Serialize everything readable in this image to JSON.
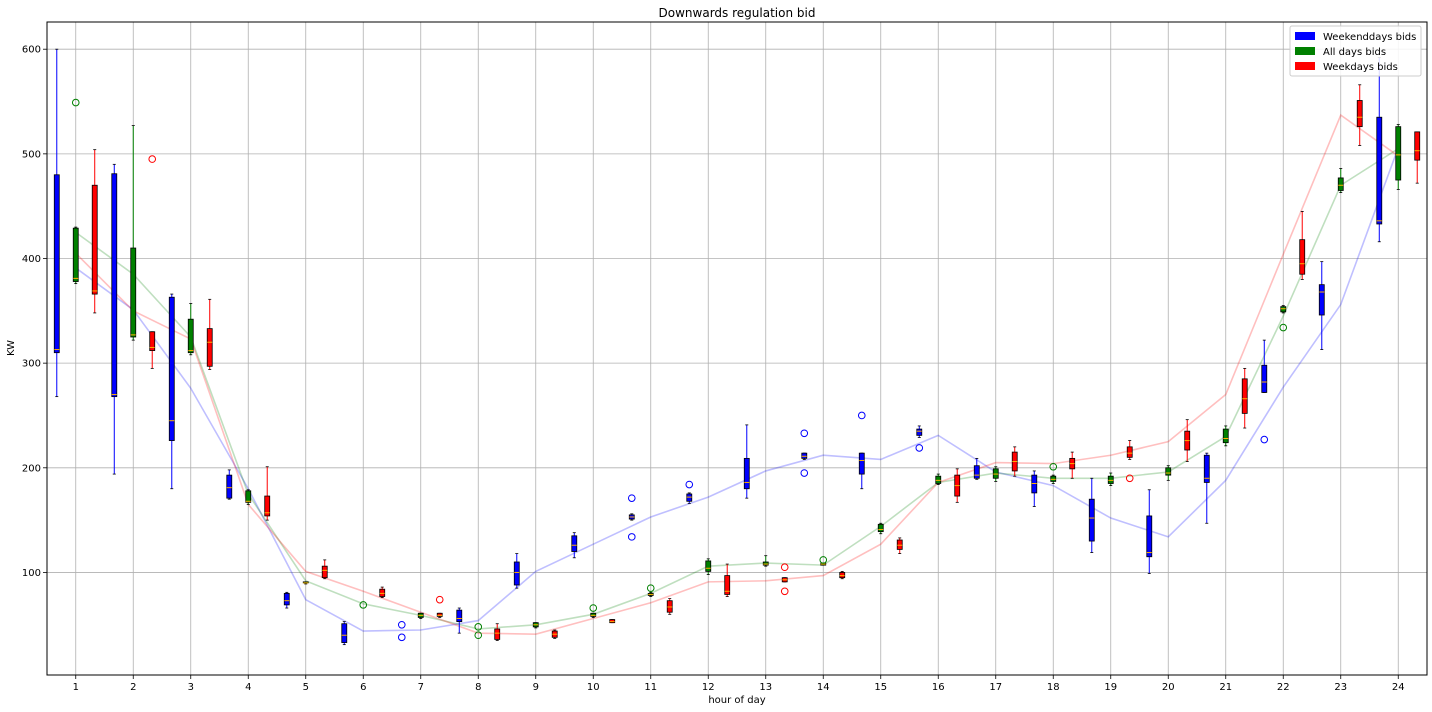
{
  "chart_data": {
    "type": "box",
    "title": "Downwards regulation bid",
    "xlabel": "hour of day",
    "ylabel": "KW",
    "x_ticks": [
      "1",
      "2",
      "3",
      "4",
      "5",
      "6",
      "7",
      "8",
      "9",
      "10",
      "11",
      "12",
      "13",
      "14",
      "15",
      "16",
      "17",
      "18",
      "19",
      "20",
      "21",
      "22",
      "23",
      "24"
    ],
    "y_ticks": [
      100,
      200,
      300,
      400,
      500,
      600
    ],
    "ylim": [
      2,
      626
    ],
    "grid": true,
    "legend_position": "top-right",
    "legend": [
      {
        "label": "Weekenddays bids",
        "color": "#0000ff"
      },
      {
        "label": "All days bids",
        "color": "#008000"
      },
      {
        "label": "Weekdays bids",
        "color": "#ff0000"
      }
    ],
    "series": [
      {
        "name": "Weekenddays bids",
        "color": "#0000ff",
        "offset": -0.33,
        "boxes": [
          {
            "q1": 310,
            "q3": 480,
            "median": 313,
            "wlo": 268,
            "whi": 600,
            "outliers": []
          },
          {
            "q1": 268,
            "q3": 481,
            "median": 270,
            "wlo": 194,
            "whi": 490,
            "outliers": []
          },
          {
            "q1": 226,
            "q3": 363,
            "median": 245,
            "wlo": 180,
            "whi": 366,
            "outliers": []
          },
          {
            "q1": 171,
            "q3": 193,
            "median": 181,
            "wlo": 170,
            "whi": 198,
            "outliers": []
          },
          {
            "q1": 69,
            "q3": 80,
            "median": 73,
            "wlo": 66,
            "whi": 81,
            "outliers": []
          },
          {
            "q1": 33,
            "q3": 51,
            "median": 40,
            "wlo": 31,
            "whi": 53,
            "outliers": []
          },
          {
            "q1": null,
            "q3": null,
            "median": null,
            "wlo": null,
            "whi": null,
            "outliers": [
              38,
              50
            ]
          },
          {
            "q1": 53,
            "q3": 64,
            "median": 56,
            "wlo": 42,
            "whi": 66,
            "outliers": []
          },
          {
            "q1": 88,
            "q3": 110,
            "median": 100,
            "wlo": 85,
            "whi": 118,
            "outliers": []
          },
          {
            "q1": 120,
            "q3": 135,
            "median": 126,
            "wlo": 114,
            "whi": 138,
            "outliers": []
          },
          {
            "q1": 151,
            "q3": 155,
            "median": 153,
            "wlo": 150,
            "whi": 156,
            "outliers": [
              134,
              171
            ]
          },
          {
            "q1": 168,
            "q3": 175,
            "median": 172,
            "wlo": 166,
            "whi": 176,
            "outliers": [
              184
            ]
          },
          {
            "q1": 180,
            "q3": 209,
            "median": 186,
            "wlo": 171,
            "whi": 241,
            "outliers": []
          },
          {
            "q1": 209,
            "q3": 214,
            "median": 211,
            "wlo": 208,
            "whi": 214,
            "outliers": [
              195,
              233
            ]
          },
          {
            "q1": 194,
            "q3": 214,
            "median": 207,
            "wlo": 180,
            "whi": 214,
            "outliers": [
              250
            ]
          },
          {
            "q1": 231,
            "q3": 237,
            "median": 235,
            "wlo": 229,
            "whi": 240,
            "outliers": [
              219
            ]
          },
          {
            "q1": 190,
            "q3": 202,
            "median": 193,
            "wlo": 189,
            "whi": 209,
            "outliers": []
          },
          {
            "q1": 176,
            "q3": 193,
            "median": 185,
            "wlo": 163,
            "whi": 197,
            "outliers": []
          },
          {
            "q1": 130,
            "q3": 170,
            "median": 152,
            "wlo": 119,
            "whi": 190,
            "outliers": []
          },
          {
            "q1": 115,
            "q3": 154,
            "median": 119,
            "wlo": 99,
            "whi": 179,
            "outliers": []
          },
          {
            "q1": 186,
            "q3": 212,
            "median": 190,
            "wlo": 147,
            "whi": 214,
            "outliers": []
          },
          {
            "q1": 272,
            "q3": 298,
            "median": 282,
            "wlo": 272,
            "whi": 322,
            "outliers": [
              227
            ]
          },
          {
            "q1": 346,
            "q3": 375,
            "median": 368,
            "wlo": 313,
            "whi": 397,
            "outliers": []
          },
          {
            "q1": 433,
            "q3": 535,
            "median": 436,
            "wlo": 416,
            "whi": 592,
            "outliers": []
          }
        ],
        "trend": [
          391,
          351,
          276,
          180,
          74,
          44,
          45,
          54,
          101,
          127,
          153,
          172,
          197,
          212,
          208,
          231,
          196,
          183,
          152,
          134,
          188,
          277,
          356,
          506
        ]
      },
      {
        "name": "All days bids",
        "color": "#008000",
        "offset": 0,
        "boxes": [
          {
            "q1": 378,
            "q3": 429,
            "median": 381,
            "wlo": 376,
            "whi": 430,
            "outliers": [
              549
            ]
          },
          {
            "q1": 325,
            "q3": 410,
            "median": 327,
            "wlo": 322,
            "whi": 527,
            "outliers": []
          },
          {
            "q1": 310,
            "q3": 342,
            "median": 312,
            "wlo": 308,
            "whi": 357,
            "outliers": []
          },
          {
            "q1": 167,
            "q3": 178,
            "median": 168,
            "wlo": 165,
            "whi": 179,
            "outliers": []
          },
          {
            "q1": 90,
            "q3": 91,
            "median": 90,
            "wlo": 89,
            "whi": 91,
            "outliers": []
          },
          {
            "q1": null,
            "q3": null,
            "median": null,
            "wlo": null,
            "whi": null,
            "outliers": [
              69
            ]
          },
          {
            "q1": 57,
            "q3": 61,
            "median": 59,
            "wlo": 56,
            "whi": 61,
            "outliers": []
          },
          {
            "q1": null,
            "q3": null,
            "median": null,
            "wlo": null,
            "whi": null,
            "outliers": [
              40,
              48
            ]
          },
          {
            "q1": 48,
            "q3": 52,
            "median": 50,
            "wlo": 47,
            "whi": 52,
            "outliers": []
          },
          {
            "q1": 58,
            "q3": 61,
            "median": 59,
            "wlo": 57,
            "whi": 61,
            "outliers": [
              66
            ]
          },
          {
            "q1": 78,
            "q3": 80,
            "median": 79,
            "wlo": 77,
            "whi": 81,
            "outliers": [
              85
            ]
          },
          {
            "q1": 101,
            "q3": 111,
            "median": 104,
            "wlo": 98,
            "whi": 113,
            "outliers": []
          },
          {
            "q1": 107,
            "q3": 110,
            "median": 108,
            "wlo": 106,
            "whi": 116,
            "outliers": []
          },
          {
            "q1": 107,
            "q3": 109,
            "median": 108,
            "wlo": 107,
            "whi": 109,
            "outliers": [
              112
            ]
          },
          {
            "q1": 139,
            "q3": 146,
            "median": 141,
            "wlo": 137,
            "whi": 147,
            "outliers": []
          },
          {
            "q1": 185,
            "q3": 192,
            "median": 188,
            "wlo": 184,
            "whi": 194,
            "outliers": []
          },
          {
            "q1": 190,
            "q3": 199,
            "median": 194,
            "wlo": 187,
            "whi": 201,
            "outliers": []
          },
          {
            "q1": 187,
            "q3": 192,
            "median": 189,
            "wlo": 185,
            "whi": 193,
            "outliers": [
              201
            ]
          },
          {
            "q1": 185,
            "q3": 192,
            "median": 188,
            "wlo": 183,
            "whi": 195,
            "outliers": []
          },
          {
            "q1": 193,
            "q3": 200,
            "median": 195,
            "wlo": 188,
            "whi": 202,
            "outliers": []
          },
          {
            "q1": 224,
            "q3": 237,
            "median": 228,
            "wlo": 221,
            "whi": 240,
            "outliers": []
          },
          {
            "q1": 349,
            "q3": 354,
            "median": 352,
            "wlo": 348,
            "whi": 355,
            "outliers": [
              334
            ]
          },
          {
            "q1": 465,
            "q3": 477,
            "median": 470,
            "wlo": 463,
            "whi": 486,
            "outliers": []
          },
          {
            "q1": 475,
            "q3": 526,
            "median": 499,
            "wlo": 466,
            "whi": 528,
            "outliers": []
          }
        ],
        "trend": [
          425,
          385,
          325,
          175,
          92,
          70,
          59,
          46,
          50,
          60,
          80,
          106,
          109,
          107,
          144,
          186,
          195,
          190,
          190,
          196,
          230,
          345,
          470,
          505
        ]
      },
      {
        "name": "Weekdays bids",
        "color": "#ff0000",
        "offset": 0.33,
        "boxes": [
          {
            "q1": 366,
            "q3": 470,
            "median": 369,
            "wlo": 348,
            "whi": 504,
            "outliers": []
          },
          {
            "q1": 312,
            "q3": 330,
            "median": 315,
            "wlo": 295,
            "whi": 330,
            "outliers": [
              495
            ]
          },
          {
            "q1": 297,
            "q3": 333,
            "median": 320,
            "wlo": 294,
            "whi": 361,
            "outliers": []
          },
          {
            "q1": 154,
            "q3": 173,
            "median": 157,
            "wlo": 150,
            "whi": 201,
            "outliers": []
          },
          {
            "q1": 95,
            "q3": 106,
            "median": 102,
            "wlo": 94,
            "whi": 112,
            "outliers": []
          },
          {
            "q1": 77,
            "q3": 84,
            "median": 80,
            "wlo": 76,
            "whi": 86,
            "outliers": []
          },
          {
            "q1": 58,
            "q3": 61,
            "median": 59,
            "wlo": 57,
            "whi": 61,
            "outliers": [
              74
            ]
          },
          {
            "q1": 36,
            "q3": 46,
            "median": 42,
            "wlo": 35,
            "whi": 51,
            "outliers": []
          },
          {
            "q1": 38,
            "q3": 44,
            "median": 41,
            "wlo": 37,
            "whi": 45,
            "outliers": []
          },
          {
            "q1": 52,
            "q3": 55,
            "median": 53,
            "wlo": 52,
            "whi": 55,
            "outliers": []
          },
          {
            "q1": 62,
            "q3": 73,
            "median": 67,
            "wlo": 60,
            "whi": 75,
            "outliers": []
          },
          {
            "q1": 79,
            "q3": 97,
            "median": 82,
            "wlo": 77,
            "whi": 108,
            "outliers": []
          },
          {
            "q1": 91,
            "q3": 95,
            "median": 93,
            "wlo": 91,
            "whi": 95,
            "outliers": [
              82,
              105
            ]
          },
          {
            "q1": 95,
            "q3": 100,
            "median": 97,
            "wlo": 94,
            "whi": 101,
            "outliers": []
          },
          {
            "q1": 122,
            "q3": 131,
            "median": 126,
            "wlo": 118,
            "whi": 133,
            "outliers": []
          },
          {
            "q1": 173,
            "q3": 193,
            "median": 183,
            "wlo": 167,
            "whi": 199,
            "outliers": []
          },
          {
            "q1": 197,
            "q3": 215,
            "median": 206,
            "wlo": 192,
            "whi": 220,
            "outliers": []
          },
          {
            "q1": 199,
            "q3": 209,
            "median": 204,
            "wlo": 190,
            "whi": 215,
            "outliers": []
          },
          {
            "q1": 210,
            "q3": 220,
            "median": 214,
            "wlo": 208,
            "whi": 226,
            "outliers": [
              190
            ]
          },
          {
            "q1": 217,
            "q3": 235,
            "median": 226,
            "wlo": 206,
            "whi": 246,
            "outliers": []
          },
          {
            "q1": 252,
            "q3": 285,
            "median": 266,
            "wlo": 238,
            "whi": 295,
            "outliers": []
          },
          {
            "q1": 385,
            "q3": 418,
            "median": 395,
            "wlo": 380,
            "whi": 445,
            "outliers": []
          },
          {
            "q1": 526,
            "q3": 551,
            "median": 535,
            "wlo": 508,
            "whi": 566,
            "outliers": []
          },
          {
            "q1": 494,
            "q3": 521,
            "median": 503,
            "wlo": 472,
            "whi": 521,
            "outliers": []
          }
        ],
        "trend": [
          405,
          350,
          323,
          165,
          101,
          82,
          62,
          42,
          41,
          56,
          71,
          91,
          92,
          97,
          127,
          186,
          205,
          204,
          212,
          225,
          270,
          404,
          537,
          498
        ]
      }
    ]
  }
}
